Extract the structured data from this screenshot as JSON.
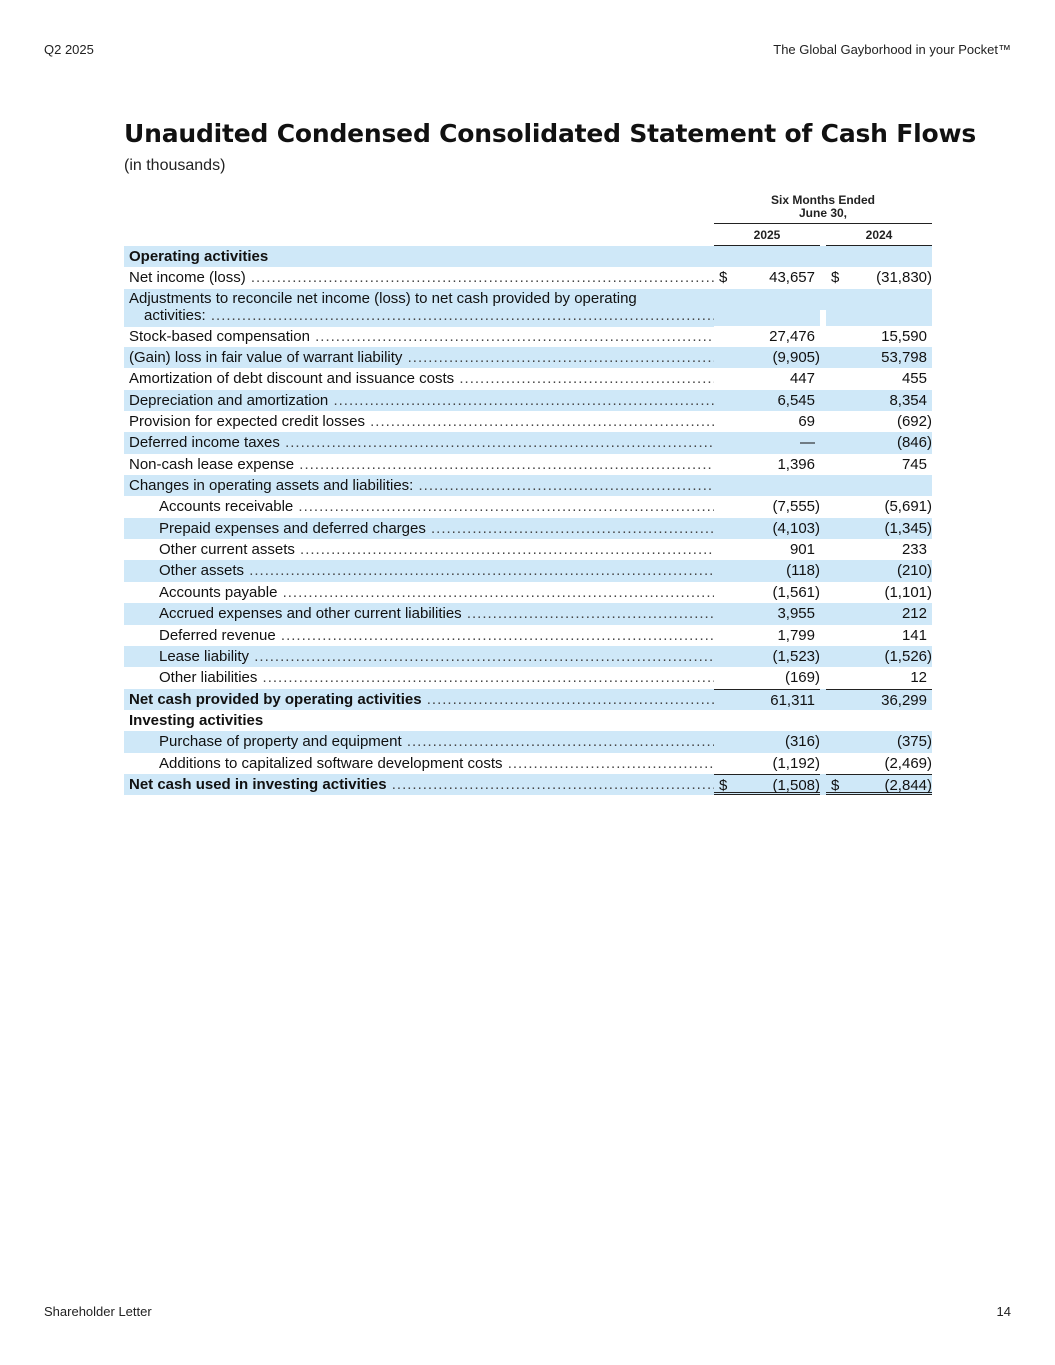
{
  "header": {
    "left": "Q2 2025",
    "right": "The Global Gayborhood in your Pocket™"
  },
  "footer": {
    "left": "Shareholder Letter",
    "right": "14"
  },
  "statement": {
    "title": "Unaudited Condensed Consolidated Statement of Cash Flows",
    "units": "(in thousands)",
    "period_heading_line1": "Six Months Ended",
    "period_heading_line2": "June 30,",
    "year_a": "2025",
    "year_b": "2024",
    "rows": [
      {
        "label": "Operating activities",
        "a": "",
        "b": "",
        "style": "heading",
        "shaded": true
      },
      {
        "label": "Net income (loss)",
        "a": "43,657",
        "b": "(31,830)",
        "dollar": true,
        "shaded": false
      },
      {
        "label": "Adjustments to reconcile net income (loss) to net cash provided by operating",
        "label2": "activities:",
        "a": "",
        "b": "",
        "style": "tall",
        "shaded": true
      },
      {
        "label": "Stock-based compensation",
        "a": "27,476",
        "b": "15,590",
        "shaded": false
      },
      {
        "label": "(Gain) loss in fair value of warrant liability",
        "a": "(9,905)",
        "b": "53,798",
        "shaded": true
      },
      {
        "label": "Amortization of debt discount and issuance costs",
        "a": "447",
        "b": "455",
        "shaded": false
      },
      {
        "label": "Depreciation and amortization",
        "a": "6,545",
        "b": "8,354",
        "shaded": true
      },
      {
        "label": "Provision for expected credit losses",
        "a": "69",
        "b": "(692)",
        "shaded": false
      },
      {
        "label": "Deferred income taxes",
        "a": "—",
        "b": "(846)",
        "shaded": true
      },
      {
        "label": "Non-cash lease expense",
        "a": "1,396",
        "b": "745",
        "shaded": false
      },
      {
        "label": "Changes in operating assets and liabilities:",
        "a": "",
        "b": "",
        "shaded": true
      },
      {
        "label": "Accounts receivable",
        "a": "(7,555)",
        "b": "(5,691)",
        "indent": true,
        "shaded": false
      },
      {
        "label": "Prepaid expenses and deferred charges",
        "a": "(4,103)",
        "b": "(1,345)",
        "indent": true,
        "shaded": true
      },
      {
        "label": "Other current assets",
        "a": "901",
        "b": "233",
        "indent": true,
        "shaded": false
      },
      {
        "label": "Other assets",
        "a": "(118)",
        "b": "(210)",
        "indent": true,
        "shaded": true
      },
      {
        "label": "Accounts payable",
        "a": "(1,561)",
        "b": "(1,101)",
        "indent": true,
        "shaded": false
      },
      {
        "label": "Accrued expenses and other current liabilities",
        "a": "3,955",
        "b": "212",
        "indent": true,
        "shaded": true
      },
      {
        "label": "Deferred revenue",
        "a": "1,799",
        "b": "141",
        "indent": true,
        "shaded": false
      },
      {
        "label": "Lease liability",
        "a": "(1,523)",
        "b": "(1,526)",
        "indent": true,
        "shaded": true
      },
      {
        "label": "Other liabilities",
        "a": "(169)",
        "b": "12",
        "indent": true,
        "shaded": false
      },
      {
        "label": "Net cash provided by operating activities",
        "a": "61,311",
        "b": "36,299",
        "style": "bold",
        "rule": "sub",
        "shaded": true
      },
      {
        "label": "Investing activities",
        "a": "",
        "b": "",
        "style": "heading",
        "shaded": false
      },
      {
        "label": "Purchase of property and equipment",
        "a": "(316)",
        "b": "(375)",
        "indent": true,
        "shaded": true
      },
      {
        "label": "Additions to capitalized software development costs",
        "a": "(1,192)",
        "b": "(2,469)",
        "indent": true,
        "shaded": false
      },
      {
        "label": "Net cash used in investing activities",
        "a": "(1,508)",
        "b": "(2,844)",
        "style": "bold",
        "rule": "total",
        "dollar": true,
        "shaded": true
      }
    ]
  }
}
